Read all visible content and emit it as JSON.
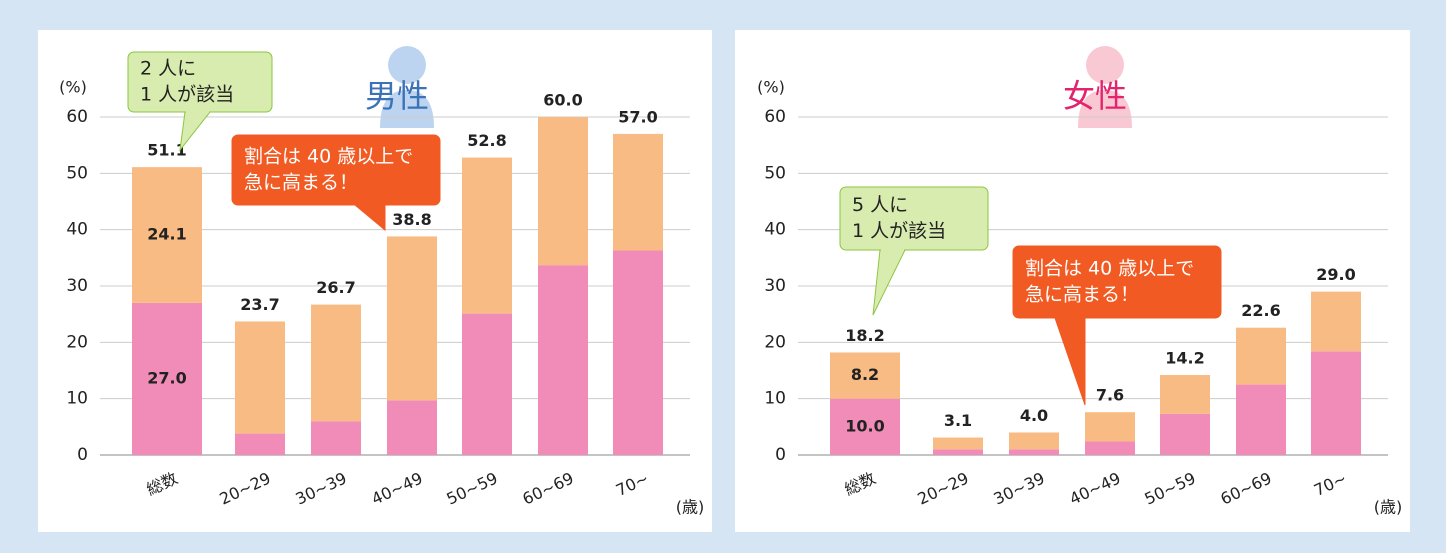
{
  "chart_data": [
    {
      "type": "stacked_bar",
      "title": "男性",
      "title_color": "#3b72b8",
      "y_unit": "(%)",
      "x_unit": "(歳)",
      "categories": [
        "総数",
        "20~29",
        "30~39",
        "40~49",
        "50~59",
        "60~69",
        "70~"
      ],
      "series": [
        {
          "color": "#f18bb7",
          "values": [
            27.0,
            3.8,
            6.0,
            9.7,
            25.1,
            33.7,
            36.3
          ],
          "value_labels": [
            "27.0",
            null,
            null,
            null,
            null,
            null,
            null
          ]
        },
        {
          "color": "#f9bb84",
          "values": [
            24.1,
            19.9,
            20.7,
            29.1,
            27.7,
            26.3,
            20.7
          ],
          "value_labels": [
            "24.1",
            null,
            null,
            null,
            null,
            null,
            null
          ]
        }
      ],
      "totals": [
        51.1,
        23.7,
        26.7,
        38.8,
        52.8,
        60,
        57
      ],
      "total_labels": [
        "51.1",
        "23.7",
        "26.7",
        "38.8",
        "52.8",
        "60.0",
        "57.0"
      ],
      "ylim": [
        0,
        60
      ],
      "yticks": [
        0,
        10,
        20,
        30,
        40,
        50,
        60
      ],
      "grid": true,
      "annotations": [
        {
          "lines": [
            "2 人に",
            "1 人が該当"
          ],
          "style": "green"
        },
        {
          "lines": [
            "割合は 40 歳以上で",
            "急に高まる！"
          ],
          "style": "orange"
        }
      ]
    },
    {
      "type": "stacked_bar",
      "title": "女性",
      "title_color": "#e4236e",
      "y_unit": "(%)",
      "x_unit": "(歳)",
      "categories": [
        "総数",
        "20~29",
        "30~39",
        "40~49",
        "50~59",
        "60~69",
        "70~"
      ],
      "series": [
        {
          "color": "#f18bb7",
          "values": [
            10.0,
            1.0,
            1.0,
            2.4,
            7.3,
            12.5,
            18.4
          ],
          "value_labels": [
            "10.0",
            null,
            null,
            null,
            null,
            null,
            null
          ]
        },
        {
          "color": "#f9bb84",
          "values": [
            8.2,
            2.1,
            3.0,
            5.2,
            6.9,
            10.1,
            10.6
          ],
          "value_labels": [
            "8.2",
            null,
            null,
            null,
            null,
            null,
            null
          ]
        }
      ],
      "totals": [
        18.2,
        3.1,
        4,
        7.6,
        14.2,
        22.6,
        29
      ],
      "total_labels": [
        "18.2",
        "3.1",
        "4.0",
        "7.6",
        "14.2",
        "22.6",
        "29.0"
      ],
      "ylim": [
        0,
        60
      ],
      "yticks": [
        0,
        10,
        20,
        30,
        40,
        50,
        60
      ],
      "grid": true,
      "annotations": [
        {
          "lines": [
            "5 人に",
            "1 人が該当"
          ],
          "style": "green"
        },
        {
          "lines": [
            "割合は 40 歳以上で",
            "急に高まる！"
          ],
          "style": "orange"
        }
      ]
    }
  ]
}
